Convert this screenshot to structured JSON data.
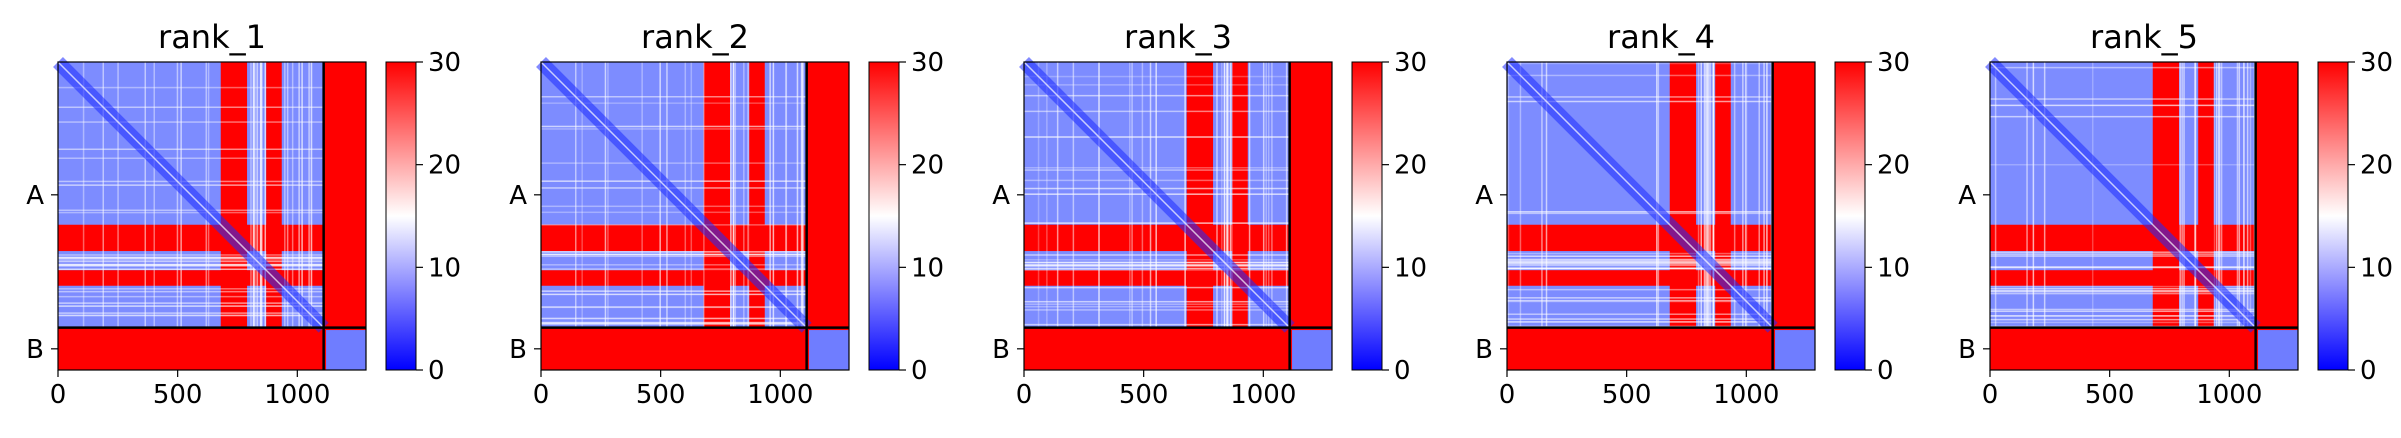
{
  "chart_data": [
    {
      "type": "heatmap",
      "title": "rank_1",
      "x_ticks": [
        0,
        500,
        1000
      ],
      "y_tick_labels": [
        "A",
        "B"
      ],
      "chain_boundary": 1110,
      "xlim": [
        0,
        1287
      ],
      "colorbar": {
        "ticks": [
          0,
          10,
          20,
          30
        ],
        "range": [
          0,
          30
        ],
        "colors": [
          "#0000ff",
          "#ffffff",
          "#ff0000"
        ]
      },
      "blue_bands": [
        [
          0,
          680
        ],
        [
          790,
          870
        ],
        [
          935,
          1110
        ]
      ]
    },
    {
      "type": "heatmap",
      "title": "rank_2",
      "x_ticks": [
        0,
        500,
        1000
      ],
      "y_tick_labels": [
        "A",
        "B"
      ],
      "chain_boundary": 1110,
      "xlim": [
        0,
        1287
      ],
      "colorbar": {
        "ticks": [
          0,
          10,
          20,
          30
        ],
        "range": [
          0,
          30
        ],
        "colors": [
          "#0000ff",
          "#ffffff",
          "#ff0000"
        ]
      },
      "blue_bands": [
        [
          0,
          680
        ],
        [
          790,
          870
        ],
        [
          935,
          1110
        ]
      ]
    },
    {
      "type": "heatmap",
      "title": "rank_3",
      "x_ticks": [
        0,
        500,
        1000
      ],
      "y_tick_labels": [
        "A",
        "B"
      ],
      "chain_boundary": 1110,
      "xlim": [
        0,
        1287
      ],
      "colorbar": {
        "ticks": [
          0,
          10,
          20,
          30
        ],
        "range": [
          0,
          30
        ],
        "colors": [
          "#0000ff",
          "#ffffff",
          "#ff0000"
        ]
      },
      "blue_bands": [
        [
          0,
          680
        ],
        [
          790,
          870
        ],
        [
          935,
          1110
        ]
      ]
    },
    {
      "type": "heatmap",
      "title": "rank_4",
      "x_ticks": [
        0,
        500,
        1000
      ],
      "y_tick_labels": [
        "A",
        "B"
      ],
      "chain_boundary": 1110,
      "xlim": [
        0,
        1287
      ],
      "colorbar": {
        "ticks": [
          0,
          10,
          20,
          30
        ],
        "range": [
          0,
          30
        ],
        "colors": [
          "#0000ff",
          "#ffffff",
          "#ff0000"
        ]
      },
      "blue_bands": [
        [
          0,
          680
        ],
        [
          790,
          870
        ],
        [
          935,
          1110
        ]
      ]
    },
    {
      "type": "heatmap",
      "title": "rank_5",
      "x_ticks": [
        0,
        500,
        1000
      ],
      "y_tick_labels": [
        "A",
        "B"
      ],
      "chain_boundary": 1110,
      "xlim": [
        0,
        1287
      ],
      "colorbar": {
        "ticks": [
          0,
          10,
          20,
          30
        ],
        "range": [
          0,
          30
        ],
        "colors": [
          "#0000ff",
          "#ffffff",
          "#ff0000"
        ]
      },
      "blue_bands": [
        [
          0,
          680
        ],
        [
          790,
          870
        ],
        [
          935,
          1110
        ]
      ]
    }
  ]
}
